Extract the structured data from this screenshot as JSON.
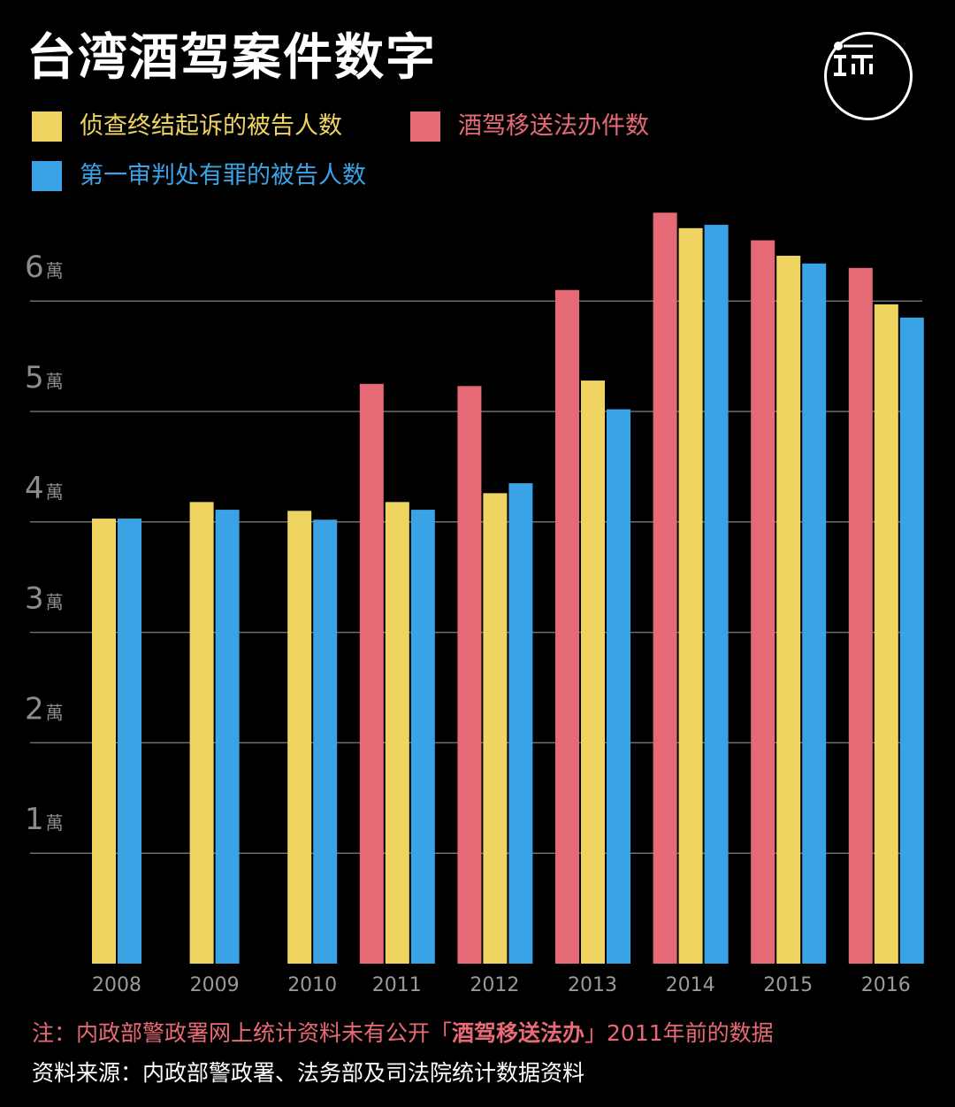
{
  "title": "台湾酒驾案件数字",
  "legend": [
    {
      "label": "侦查终结起诉的被告人数",
      "color": "#f0d461"
    },
    {
      "label": "酒驾移送法办件数",
      "color": "#e56a76"
    },
    {
      "label": "第一审判处有罪的被告人数",
      "color": "#3aa3e6"
    }
  ],
  "footer": {
    "note_prefix": "注：内政部警政署网上统计资料未有公开「",
    "note_bold": "酒驾移送法办",
    "note_suffix": "」2011年前的数据",
    "source": "资料来源：内政部警政署、法务部及司法院统计数据资料"
  },
  "chart_data": {
    "type": "bar",
    "categories": [
      "2008",
      "2009",
      "2010",
      "2011",
      "2012",
      "2013",
      "2014",
      "2015",
      "2016"
    ],
    "ylim": [
      0,
      70000
    ],
    "yticks": [
      {
        "value": 10000,
        "num": "1",
        "unit": "萬"
      },
      {
        "value": 20000,
        "num": "2",
        "unit": "萬"
      },
      {
        "value": 30000,
        "num": "3",
        "unit": "萬"
      },
      {
        "value": 40000,
        "num": "4",
        "unit": "萬"
      },
      {
        "value": 50000,
        "num": "5",
        "unit": "萬"
      },
      {
        "value": 60000,
        "num": "6",
        "unit": "萬"
      }
    ],
    "grid": true,
    "series": [
      {
        "name": "酒驾移送法办件数",
        "color": "#e56a76",
        "values": [
          null,
          null,
          null,
          52500,
          52300,
          61000,
          68000,
          65500,
          63000
        ]
      },
      {
        "name": "侦查终结起诉的被告人数",
        "color": "#f0d461",
        "values": [
          40300,
          41800,
          41000,
          41800,
          42600,
          52800,
          66600,
          64100,
          59700
        ]
      },
      {
        "name": "第一审判处有罪的被告人数",
        "color": "#3aa3e6",
        "values": [
          40300,
          41100,
          40200,
          41100,
          43500,
          50200,
          66900,
          63400,
          58500
        ]
      }
    ]
  }
}
